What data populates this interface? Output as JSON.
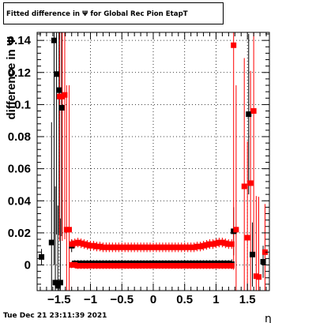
{
  "header": {
    "title": "Fitted difference in  Ψ  for Global Rec Pion EtapT"
  },
  "footer": {
    "timestamp": "Tue Dec 21 23:11:39 2021"
  },
  "chart_data": {
    "type": "scatter",
    "title": "Fitted difference in  Ψ  for Global Rec Pion EtapT",
    "xlabel": "η",
    "ylabel": "difference in  Ψ",
    "xlim": [
      -1.85,
      1.85
    ],
    "ylim": [
      -0.016,
      0.145
    ],
    "xticks": [
      -1.5,
      -1,
      -0.5,
      0,
      0.5,
      1,
      1.5
    ],
    "xtick_labels": [
      "−1.5",
      "−1",
      "−0.5",
      "0",
      "0.5",
      "1",
      "1.5"
    ],
    "yticks": [
      0,
      0.02,
      0.04,
      0.06,
      0.08,
      0.1,
      0.12,
      0.14
    ],
    "ytick_labels": [
      "0",
      "0.02",
      "0.04",
      "0.06",
      "0.08",
      "0.1",
      "0.12",
      "0.14"
    ],
    "grid": true,
    "colors": {
      "series_black": "#000000",
      "series_red": "#ff0000"
    },
    "series": [
      {
        "color": "#000000",
        "marker": "square",
        "points": [
          [
            -1.78,
            0.005,
            0.005
          ],
          [
            -1.62,
            0.014,
            0.075
          ],
          [
            -1.58,
            0.14,
            0.14
          ],
          [
            -1.56,
            -0.011,
            0.06
          ],
          [
            -1.54,
            0.119,
            0.1
          ],
          [
            -1.52,
            -0.013,
            0.05
          ],
          [
            -1.5,
            0.109,
            0.09
          ],
          [
            -1.48,
            -0.011,
            0.04
          ],
          [
            -1.46,
            0.098,
            0.08
          ],
          [
            -1.3,
            0.012,
            0.004
          ],
          [
            -1.25,
            0.001,
            0.002
          ],
          [
            -1.2,
            0.001,
            0.002
          ],
          [
            -1.15,
            0.001,
            0.002
          ],
          [
            -1.1,
            0.001,
            0.002
          ],
          [
            -1.05,
            0.001,
            0.002
          ],
          [
            -1.0,
            0.001,
            0.002
          ],
          [
            -0.95,
            0.001,
            0.002
          ],
          [
            -0.9,
            0.001,
            0.002
          ],
          [
            -0.85,
            0.001,
            0.002
          ],
          [
            -0.8,
            0.001,
            0.002
          ],
          [
            -0.75,
            0.001,
            0.002
          ],
          [
            -0.7,
            0.001,
            0.002
          ],
          [
            -0.65,
            0.001,
            0.002
          ],
          [
            -0.6,
            0.001,
            0.002
          ],
          [
            -0.55,
            0.001,
            0.002
          ],
          [
            -0.5,
            0.001,
            0.002
          ],
          [
            -0.45,
            0.001,
            0.002
          ],
          [
            -0.4,
            0.001,
            0.002
          ],
          [
            -0.35,
            0.001,
            0.002
          ],
          [
            -0.3,
            0.001,
            0.002
          ],
          [
            -0.25,
            0.001,
            0.002
          ],
          [
            -0.2,
            0.001,
            0.002
          ],
          [
            -0.15,
            0.001,
            0.002
          ],
          [
            -0.1,
            0.001,
            0.002
          ],
          [
            -0.05,
            0.001,
            0.002
          ],
          [
            0.0,
            0.001,
            0.002
          ],
          [
            0.05,
            0.001,
            0.002
          ],
          [
            0.1,
            0.001,
            0.002
          ],
          [
            0.15,
            0.001,
            0.002
          ],
          [
            0.2,
            0.001,
            0.002
          ],
          [
            0.25,
            0.001,
            0.002
          ],
          [
            0.3,
            0.001,
            0.002
          ],
          [
            0.35,
            0.001,
            0.002
          ],
          [
            0.4,
            0.001,
            0.002
          ],
          [
            0.45,
            0.001,
            0.002
          ],
          [
            0.5,
            0.001,
            0.002
          ],
          [
            0.55,
            0.001,
            0.002
          ],
          [
            0.6,
            0.001,
            0.002
          ],
          [
            0.65,
            0.001,
            0.002
          ],
          [
            0.7,
            0.001,
            0.002
          ],
          [
            0.75,
            0.001,
            0.002
          ],
          [
            0.8,
            0.001,
            0.002
          ],
          [
            0.85,
            0.001,
            0.002
          ],
          [
            0.9,
            0.001,
            0.002
          ],
          [
            0.95,
            0.001,
            0.002
          ],
          [
            1.0,
            0.001,
            0.002
          ],
          [
            1.05,
            0.001,
            0.002
          ],
          [
            1.1,
            0.001,
            0.002
          ],
          [
            1.15,
            0.001,
            0.002
          ],
          [
            1.2,
            0.001,
            0.002
          ],
          [
            1.25,
            0.0005,
            0.003
          ],
          [
            1.28,
            0.021,
            0.015
          ],
          [
            1.52,
            0.094,
            0.05
          ],
          [
            1.58,
            0.0065,
            0.02
          ],
          [
            1.75,
            0.002,
            0.01
          ]
        ]
      },
      {
        "color": "#ff0000",
        "marker": "square",
        "points": [
          [
            -1.49,
            0.105,
            0.09
          ],
          [
            -1.45,
            0.105,
            0.09
          ],
          [
            -1.41,
            0.106,
            0.09
          ],
          [
            -1.38,
            0.022,
            0.09
          ],
          [
            -1.34,
            0.022,
            0.09
          ],
          [
            -1.3,
            0.013,
            0.003
          ],
          [
            -1.3,
            0.0,
            0.002
          ],
          [
            -1.25,
            0.0135,
            0.003
          ],
          [
            -1.25,
            0.0,
            0.002
          ],
          [
            -1.2,
            0.014,
            0.003
          ],
          [
            -1.2,
            -0.0005,
            0.002
          ],
          [
            -1.15,
            0.0135,
            0.003
          ],
          [
            -1.15,
            -0.0005,
            0.002
          ],
          [
            -1.1,
            0.013,
            0.003
          ],
          [
            -1.1,
            -0.0005,
            0.002
          ],
          [
            -1.05,
            0.0125,
            0.003
          ],
          [
            -1.05,
            -0.0005,
            0.002
          ],
          [
            -1.0,
            0.012,
            0.003
          ],
          [
            -1.0,
            -0.0005,
            0.002
          ],
          [
            -0.95,
            0.012,
            0.003
          ],
          [
            -0.95,
            -0.0005,
            0.002
          ],
          [
            -0.9,
            0.0115,
            0.003
          ],
          [
            -0.9,
            -0.0005,
            0.002
          ],
          [
            -0.85,
            0.0115,
            0.003
          ],
          [
            -0.85,
            -0.0005,
            0.002
          ],
          [
            -0.8,
            0.011,
            0.003
          ],
          [
            -0.8,
            -0.0005,
            0.002
          ],
          [
            -0.75,
            0.011,
            0.003
          ],
          [
            -0.75,
            -0.0005,
            0.002
          ],
          [
            -0.7,
            0.011,
            0.003
          ],
          [
            -0.7,
            -0.0005,
            0.002
          ],
          [
            -0.65,
            0.011,
            0.003
          ],
          [
            -0.65,
            -0.0005,
            0.002
          ],
          [
            -0.6,
            0.011,
            0.003
          ],
          [
            -0.6,
            -0.0005,
            0.002
          ],
          [
            -0.55,
            0.011,
            0.003
          ],
          [
            -0.55,
            -0.0005,
            0.002
          ],
          [
            -0.5,
            0.011,
            0.003
          ],
          [
            -0.5,
            -0.0005,
            0.002
          ],
          [
            -0.45,
            0.011,
            0.003
          ],
          [
            -0.45,
            -0.0005,
            0.002
          ],
          [
            -0.4,
            0.011,
            0.003
          ],
          [
            -0.4,
            -0.0005,
            0.002
          ],
          [
            -0.35,
            0.011,
            0.003
          ],
          [
            -0.35,
            -0.0005,
            0.002
          ],
          [
            -0.3,
            0.011,
            0.003
          ],
          [
            -0.3,
            -0.0005,
            0.002
          ],
          [
            -0.25,
            0.011,
            0.003
          ],
          [
            -0.25,
            -0.0005,
            0.002
          ],
          [
            -0.2,
            0.011,
            0.003
          ],
          [
            -0.2,
            -0.0005,
            0.002
          ],
          [
            -0.15,
            0.011,
            0.003
          ],
          [
            -0.15,
            -0.0005,
            0.002
          ],
          [
            -0.1,
            0.011,
            0.003
          ],
          [
            -0.1,
            -0.0005,
            0.002
          ],
          [
            -0.05,
            0.011,
            0.003
          ],
          [
            -0.05,
            -0.0005,
            0.002
          ],
          [
            0.0,
            0.011,
            0.003
          ],
          [
            0.0,
            -0.0005,
            0.002
          ],
          [
            0.05,
            0.011,
            0.003
          ],
          [
            0.05,
            -0.0005,
            0.002
          ],
          [
            0.1,
            0.011,
            0.003
          ],
          [
            0.1,
            -0.0005,
            0.002
          ],
          [
            0.15,
            0.011,
            0.003
          ],
          [
            0.15,
            -0.0005,
            0.002
          ],
          [
            0.2,
            0.011,
            0.003
          ],
          [
            0.2,
            -0.0005,
            0.002
          ],
          [
            0.25,
            0.011,
            0.003
          ],
          [
            0.25,
            -0.0005,
            0.002
          ],
          [
            0.3,
            0.011,
            0.003
          ],
          [
            0.3,
            -0.0005,
            0.002
          ],
          [
            0.35,
            0.011,
            0.003
          ],
          [
            0.35,
            -0.0005,
            0.002
          ],
          [
            0.4,
            0.011,
            0.003
          ],
          [
            0.4,
            -0.0005,
            0.002
          ],
          [
            0.45,
            0.011,
            0.003
          ],
          [
            0.45,
            -0.0005,
            0.002
          ],
          [
            0.5,
            0.011,
            0.003
          ],
          [
            0.5,
            -0.0005,
            0.002
          ],
          [
            0.55,
            0.011,
            0.003
          ],
          [
            0.55,
            -0.0005,
            0.002
          ],
          [
            0.6,
            0.011,
            0.003
          ],
          [
            0.6,
            -0.0005,
            0.002
          ],
          [
            0.65,
            0.011,
            0.003
          ],
          [
            0.65,
            -0.0005,
            0.002
          ],
          [
            0.7,
            0.0115,
            0.003
          ],
          [
            0.7,
            -0.0005,
            0.002
          ],
          [
            0.75,
            0.0115,
            0.003
          ],
          [
            0.75,
            -0.0005,
            0.002
          ],
          [
            0.8,
            0.012,
            0.003
          ],
          [
            0.8,
            -0.0005,
            0.002
          ],
          [
            0.85,
            0.0125,
            0.003
          ],
          [
            0.85,
            -0.0005,
            0.002
          ],
          [
            0.9,
            0.013,
            0.003
          ],
          [
            0.9,
            -0.0005,
            0.002
          ],
          [
            0.95,
            0.013,
            0.003
          ],
          [
            0.95,
            -0.0005,
            0.002
          ],
          [
            1.0,
            0.0135,
            0.003
          ],
          [
            1.0,
            -0.0005,
            0.002
          ],
          [
            1.05,
            0.014,
            0.003
          ],
          [
            1.05,
            -0.0005,
            0.002
          ],
          [
            1.1,
            0.014,
            0.003
          ],
          [
            1.1,
            -0.0005,
            0.002
          ],
          [
            1.15,
            0.0135,
            0.003
          ],
          [
            1.15,
            -0.0005,
            0.002
          ],
          [
            1.2,
            0.013,
            0.003
          ],
          [
            1.2,
            -0.0005,
            0.002
          ],
          [
            1.25,
            0.013,
            0.003
          ],
          [
            1.25,
            -0.0005,
            0.002
          ],
          [
            1.28,
            0.137,
            0.14
          ],
          [
            1.32,
            0.022,
            0.09
          ],
          [
            1.45,
            0.049,
            0.08
          ],
          [
            1.5,
            0.017,
            0.06
          ],
          [
            1.55,
            0.051,
            0.07
          ],
          [
            1.6,
            0.096,
            0.09
          ],
          [
            1.64,
            -0.007,
            0.05
          ],
          [
            1.68,
            -0.0075,
            0.05
          ],
          [
            1.78,
            0.008,
            0.03
          ]
        ]
      }
    ]
  }
}
